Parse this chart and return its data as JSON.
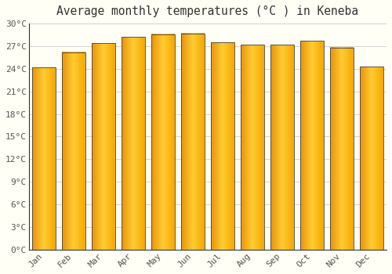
{
  "title": "Average monthly temperatures (°C ) in Keneba",
  "months": [
    "Jan",
    "Feb",
    "Mar",
    "Apr",
    "May",
    "Jun",
    "Jul",
    "Aug",
    "Sep",
    "Oct",
    "Nov",
    "Dec"
  ],
  "values": [
    24.2,
    26.2,
    27.4,
    28.2,
    28.6,
    28.7,
    27.5,
    27.2,
    27.2,
    27.7,
    26.8,
    24.3
  ],
  "bar_color_left": "#E8920A",
  "bar_color_center": "#FFCC33",
  "bar_color_right": "#F5A800",
  "border_color": "#444444",
  "ylim": [
    0,
    30
  ],
  "yticks": [
    0,
    3,
    6,
    9,
    12,
    15,
    18,
    21,
    24,
    27,
    30
  ],
  "ytick_labels": [
    "0°C",
    "3°C",
    "6°C",
    "9°C",
    "12°C",
    "15°C",
    "18°C",
    "21°C",
    "24°C",
    "27°C",
    "30°C"
  ],
  "background_color": "#fffff5",
  "grid_color": "#cccccc",
  "title_fontsize": 10.5,
  "tick_fontsize": 8,
  "bar_width": 0.78
}
